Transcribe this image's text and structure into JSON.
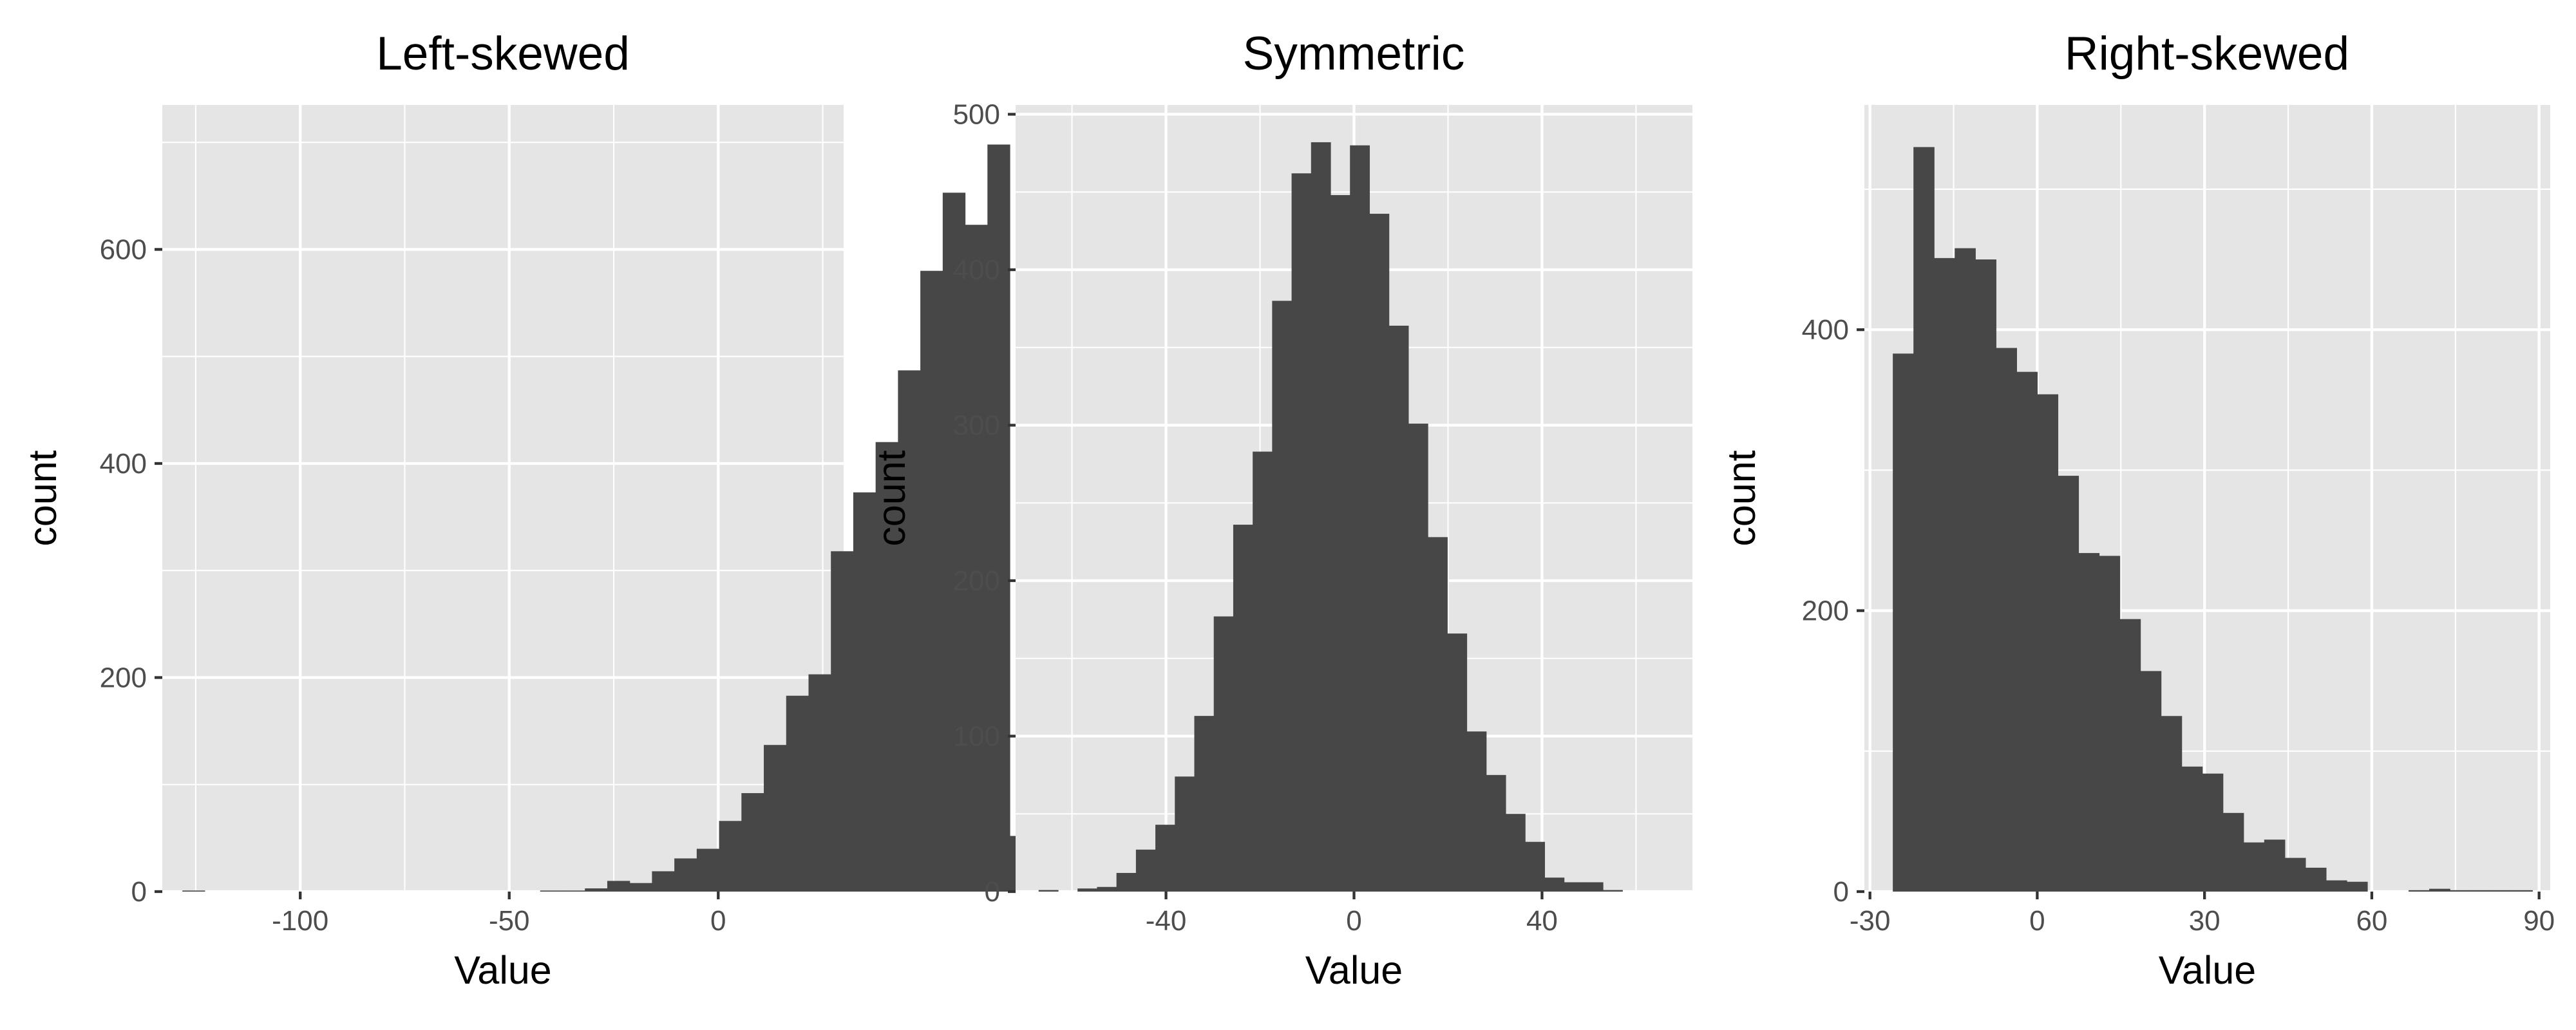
{
  "chart_data": [
    {
      "type": "bar",
      "title": "Left-skewed",
      "xlabel": "Value",
      "ylabel": "count",
      "xlim": [
        -133,
        30
      ],
      "ylim": [
        0,
        735
      ],
      "xticks": [
        -100,
        -50,
        0
      ],
      "xtick_labels": [
        "-100",
        "-50",
        "0"
      ],
      "yticks": [
        0,
        200,
        400,
        600
      ],
      "ytick_labels": [
        "0",
        "200",
        "400",
        "600"
      ],
      "grid": true,
      "bin_width": 5.35,
      "bin_start": -128.2,
      "values": [
        1,
        0,
        0,
        0,
        0,
        0,
        0,
        0,
        0,
        0,
        0,
        0,
        0,
        0,
        0,
        0,
        1,
        1,
        3,
        10,
        8,
        19,
        31,
        40,
        66,
        92,
        137,
        183,
        203,
        318,
        373,
        420,
        487,
        580,
        653,
        623,
        698,
        52
      ]
    },
    {
      "type": "bar",
      "title": "Symmetric",
      "xlabel": "Value",
      "ylabel": "count",
      "xlim": [
        -72,
        72
      ],
      "ylim": [
        0,
        506
      ],
      "xticks": [
        -40,
        0,
        40
      ],
      "xtick_labels": [
        "-40",
        "0",
        "40"
      ],
      "yticks": [
        0,
        100,
        200,
        300,
        400,
        500
      ],
      "ytick_labels": [
        "0",
        "100",
        "200",
        "300",
        "400",
        "500"
      ],
      "grid": true,
      "bin_width": 4.14,
      "bin_start": -67.1,
      "values": [
        1,
        0,
        2,
        3,
        12,
        27,
        43,
        74,
        113,
        177,
        236,
        283,
        380,
        462,
        482,
        448,
        480,
        436,
        364,
        301,
        228,
        166,
        103,
        75,
        50,
        32,
        9,
        6,
        6,
        1
      ]
    },
    {
      "type": "bar",
      "title": "Right-skewed",
      "xlabel": "Value",
      "ylabel": "count",
      "xlim": [
        -31,
        92
      ],
      "ylim": [
        0,
        560
      ],
      "xticks": [
        -30,
        0,
        30,
        60,
        90
      ],
      "xtick_labels": [
        "-30",
        "0",
        "30",
        "60",
        "90"
      ],
      "yticks": [
        0,
        200,
        400
      ],
      "ytick_labels": [
        "0",
        "200",
        "400"
      ],
      "grid": true,
      "bin_width": 3.7,
      "bin_start": -25.9,
      "values": [
        383,
        530,
        451,
        458,
        450,
        387,
        370,
        354,
        296,
        241,
        239,
        194,
        157,
        125,
        89,
        84,
        56,
        35,
        37,
        24,
        17,
        8,
        7,
        0,
        0,
        1,
        2,
        1,
        1,
        1,
        1
      ]
    }
  ]
}
